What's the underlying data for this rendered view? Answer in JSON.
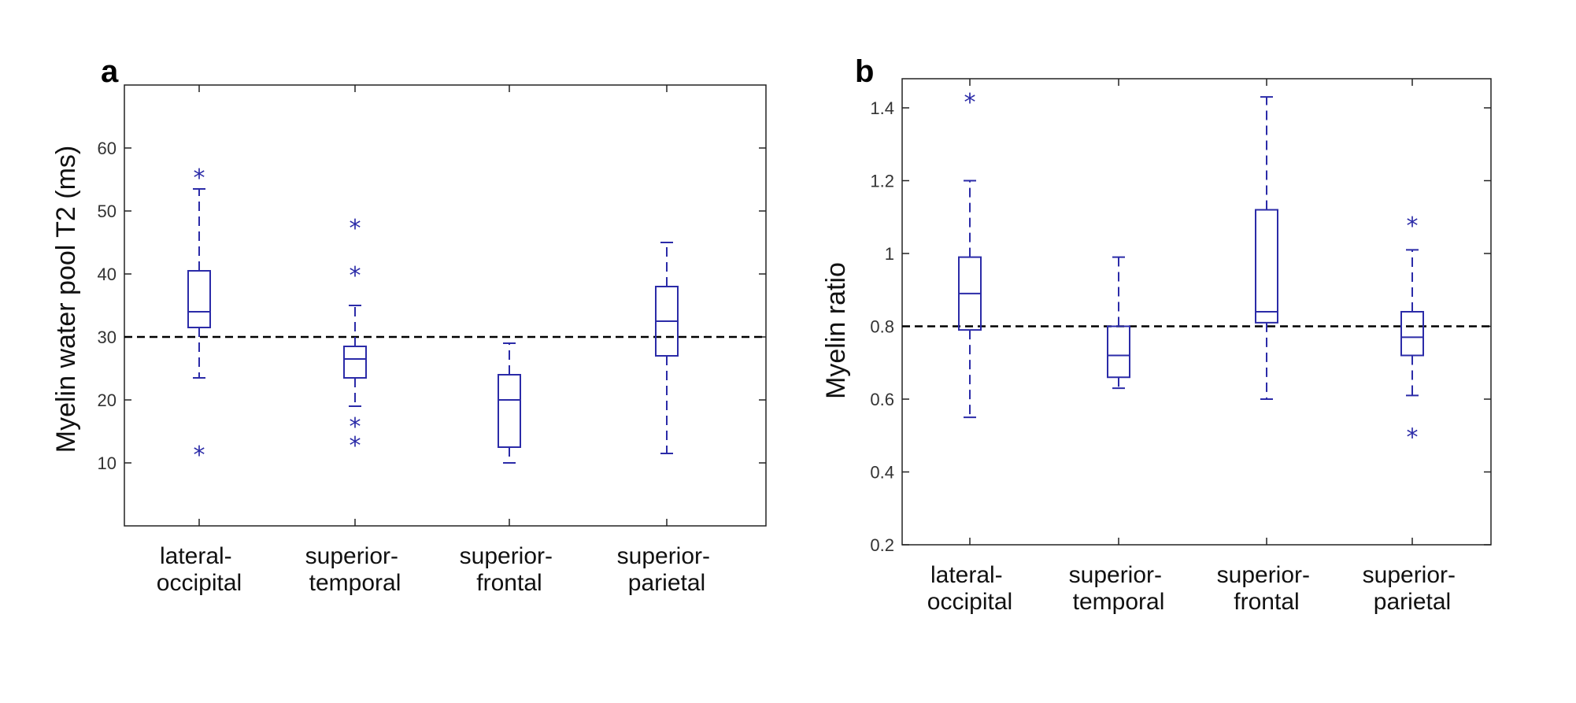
{
  "colors": {
    "box": "#2b2ba8",
    "axis": "#222222",
    "reference_line": "#000000"
  },
  "chart_data": [
    {
      "type": "boxplot",
      "panel": "a",
      "ylabel": "Myelin water pool T2 (ms)",
      "xlabel": "",
      "ylim": [
        0,
        70
      ],
      "yticks": [
        10,
        20,
        30,
        40,
        50,
        60
      ],
      "ytick_labels": [
        "10",
        "20",
        "30",
        "40",
        "50",
        "60"
      ],
      "reference_line": 30,
      "categories": [
        {
          "line1": "lateral-",
          "line2": "occipital"
        },
        {
          "line1": "superior-",
          "line2": "temporal"
        },
        {
          "line1": "superior-",
          "line2": "frontal"
        },
        {
          "line1": "superior-",
          "line2": "parietal"
        }
      ],
      "boxes": [
        {
          "whisker_low": 23.5,
          "q1": 31.5,
          "median": 34,
          "q3": 40.5,
          "whisker_high": 53.5,
          "outliers": [
            55.5,
            11.5
          ]
        },
        {
          "whisker_low": 19,
          "q1": 23.5,
          "median": 26.5,
          "q3": 28.5,
          "whisker_high": 35,
          "outliers": [
            47.5,
            40,
            16,
            13
          ]
        },
        {
          "whisker_low": 10,
          "q1": 12.5,
          "median": 20,
          "q3": 24,
          "whisker_high": 29,
          "outliers": []
        },
        {
          "whisker_low": 11.5,
          "q1": 27,
          "median": 32.5,
          "q3": 38,
          "whisker_high": 45,
          "outliers": []
        }
      ]
    },
    {
      "type": "boxplot",
      "panel": "b",
      "ylabel": "Myelin ratio",
      "xlabel": "",
      "ylim": [
        0.2,
        1.48
      ],
      "yticks": [
        0.2,
        0.4,
        0.6,
        0.8,
        1.0,
        1.2,
        1.4
      ],
      "ytick_labels": [
        "0.2",
        "0.4",
        "0.6",
        "0.8",
        "1",
        "1.2",
        "1.4"
      ],
      "reference_line": 0.8,
      "categories": [
        {
          "line1": "lateral-",
          "line2": "occipital"
        },
        {
          "line1": "superior-",
          "line2": "temporal"
        },
        {
          "line1": "superior-",
          "line2": "frontal"
        },
        {
          "line1": "superior-",
          "line2": "parietal"
        }
      ],
      "boxes": [
        {
          "whisker_low": 0.55,
          "q1": 0.79,
          "median": 0.89,
          "q3": 0.99,
          "whisker_high": 1.2,
          "outliers": [
            1.42
          ]
        },
        {
          "whisker_low": 0.63,
          "q1": 0.66,
          "median": 0.72,
          "q3": 0.8,
          "whisker_high": 0.99,
          "outliers": []
        },
        {
          "whisker_low": 0.6,
          "q1": 0.81,
          "median": 0.84,
          "q3": 1.12,
          "whisker_high": 1.43,
          "outliers": []
        },
        {
          "whisker_low": 0.61,
          "q1": 0.72,
          "median": 0.77,
          "q3": 0.84,
          "whisker_high": 1.01,
          "outliers": [
            1.08,
            0.5
          ]
        }
      ]
    }
  ]
}
